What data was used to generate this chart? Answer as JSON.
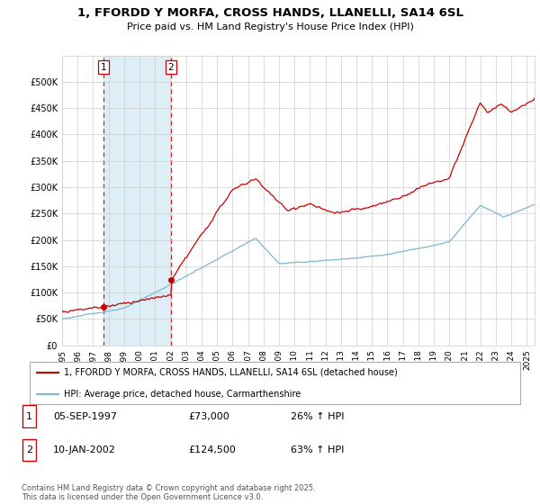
{
  "title": "1, FFORDD Y MORFA, CROSS HANDS, LLANELLI, SA14 6SL",
  "subtitle": "Price paid vs. HM Land Registry's House Price Index (HPI)",
  "legend_line1": "1, FFORDD Y MORFA, CROSS HANDS, LLANELLI, SA14 6SL (detached house)",
  "legend_line2": "HPI: Average price, detached house, Carmarthenshire",
  "footer": "Contains HM Land Registry data © Crown copyright and database right 2025.\nThis data is licensed under the Open Government Licence v3.0.",
  "sale1_date": "05-SEP-1997",
  "sale1_price": "£73,000",
  "sale1_hpi": "26% ↑ HPI",
  "sale2_date": "10-JAN-2002",
  "sale2_price": "£124,500",
  "sale2_hpi": "63% ↑ HPI",
  "red_color": "#cc0000",
  "blue_color": "#7eb6d4",
  "blue_fill": "#ddeef6",
  "background_color": "#ffffff",
  "grid_color": "#cccccc",
  "xmin": 1995.0,
  "xmax": 2025.5,
  "ymin": 0,
  "ymax": 550000,
  "sale1_year": 1997.67,
  "sale1_val": 73000,
  "sale2_year": 2002.03,
  "sale2_val": 124500
}
